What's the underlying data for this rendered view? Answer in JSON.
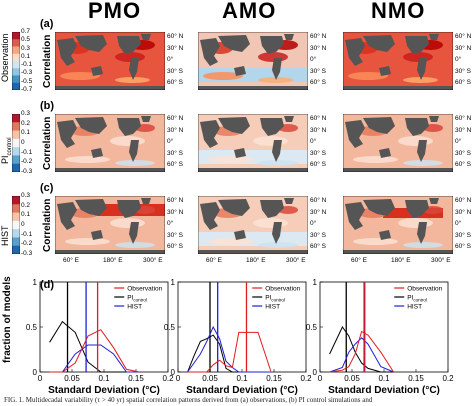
{
  "columns": [
    "PMO",
    "AMO",
    "NMO"
  ],
  "rows": [
    {
      "letter": "(a)",
      "label": "Observation",
      "sub": "",
      "cb_ticks": [
        "0.7",
        "0.5",
        "0.3",
        "0.1",
        "-0.1",
        "-0.3",
        "-0.5",
        "-0.7"
      ]
    },
    {
      "letter": "(b)",
      "label": "PI",
      "sub": "control",
      "cb_ticks": [
        "0.3",
        "0.2",
        "0.1",
        "0",
        "-0.1",
        "-0.2",
        "-0.3"
      ]
    },
    {
      "letter": "(c)",
      "label": "HIST",
      "sub": "",
      "cb_ticks": [
        "0.3",
        "0.2",
        "0.1",
        "0",
        "-0.1",
        "-0.2",
        "-0.3"
      ]
    }
  ],
  "colorbar_label": "Correlation",
  "lat_labels": [
    "60° N",
    "30° N",
    "0°",
    "30° S",
    "60° S"
  ],
  "lon_labels": [
    "60° E",
    "180° E",
    "300° E"
  ],
  "panel_d": {
    "letter": "(d)",
    "ylabel": "fraction of models",
    "xlabel": "Standard Deviation (°C)",
    "legend": [
      "Observation",
      "PI",
      "HIST"
    ],
    "legend_sub": "control"
  },
  "colors": {
    "observation": "#e41a1c",
    "pi_control": "#000000",
    "hist": "#1f1fd6",
    "land": "#555555"
  },
  "caption": "FIG. 1. Multidecadal variability (τ > 40 yr) spatial correlation patterns derived from (a) observations, (b) PI control simulations and",
  "chart_data": [
    {
      "type": "line",
      "panel": "PMO",
      "xlabel": "Standard Deviation (°C)",
      "ylabel": "fraction of models",
      "xlim": [
        0,
        0.2
      ],
      "ylim": [
        0,
        1
      ],
      "xticks": [
        "0",
        "0.05",
        "0.1",
        "0.15",
        "0.2"
      ],
      "yticks": [
        "0",
        "0.5",
        "1"
      ],
      "x": [
        0.015,
        0.035,
        0.055,
        0.075,
        0.095,
        0.115,
        0.135,
        0.155
      ],
      "series": [
        {
          "name": "PI control",
          "values": [
            0.33,
            0.56,
            0.44,
            0.11,
            0,
            0,
            0,
            0
          ],
          "vline": 0.043
        },
        {
          "name": "HIST",
          "values": [
            0,
            0,
            0.2,
            0.3,
            0.3,
            0.2,
            0,
            0
          ],
          "vline": 0.072
        },
        {
          "name": "Observation",
          "values": [
            0,
            0,
            0.1,
            0.4,
            0.47,
            0.27,
            0.03,
            0
          ],
          "vline": 0.09
        }
      ]
    },
    {
      "type": "line",
      "panel": "AMO",
      "xlabel": "Standard Deviation (°C)",
      "ylabel": "",
      "xlim": [
        0,
        0.2
      ],
      "ylim": [
        0,
        1
      ],
      "xticks": [
        "0",
        "0.05",
        "0.1",
        "0.15",
        "0.2"
      ],
      "yticks": [
        "0",
        "0.5",
        "1"
      ],
      "x": [
        0.015,
        0.025,
        0.035,
        0.045,
        0.055,
        0.065,
        0.075,
        0.085,
        0.095,
        0.125,
        0.145
      ],
      "series": [
        {
          "name": "PI control",
          "values": [
            0,
            0.18,
            0.34,
            0.37,
            0.41,
            0.31,
            0.04,
            0,
            0,
            0,
            0
          ],
          "vline": 0.05
        },
        {
          "name": "HIST",
          "values": [
            0,
            0.1,
            0.2,
            0.34,
            0.5,
            0.37,
            0.12,
            0.05,
            0,
            0,
            0
          ],
          "vline": 0.062
        },
        {
          "name": "Observation",
          "values": [
            0,
            0,
            0,
            0,
            0.08,
            0.13,
            0.07,
            0.05,
            0.44,
            0.44,
            0.01
          ],
          "vline": 0.107
        }
      ]
    },
    {
      "type": "line",
      "panel": "NMO",
      "xlabel": "Standard Deviation (°C)",
      "ylabel": "",
      "xlim": [
        0,
        0.2
      ],
      "ylim": [
        0,
        1
      ],
      "xticks": [
        "0",
        "0.05",
        "0.1",
        "0.15",
        "0.2"
      ],
      "yticks": [
        "0",
        "0.5",
        "1"
      ],
      "x": [
        0.015,
        0.035,
        0.045,
        0.055,
        0.065,
        0.075,
        0.095,
        0.115
      ],
      "series": [
        {
          "name": "PI control",
          "values": [
            0.2,
            0.5,
            0.4,
            0.22,
            0.1,
            0.04,
            0,
            0
          ],
          "vline": 0.041
        },
        {
          "name": "HIST",
          "values": [
            0,
            0.05,
            0.22,
            0.31,
            0.38,
            0.31,
            0.06,
            0
          ],
          "vline": 0.069
        },
        {
          "name": "Observation",
          "values": [
            0,
            0.02,
            0.06,
            0.2,
            0.45,
            0.41,
            0.22,
            0
          ],
          "vline": 0.07
        }
      ]
    }
  ]
}
